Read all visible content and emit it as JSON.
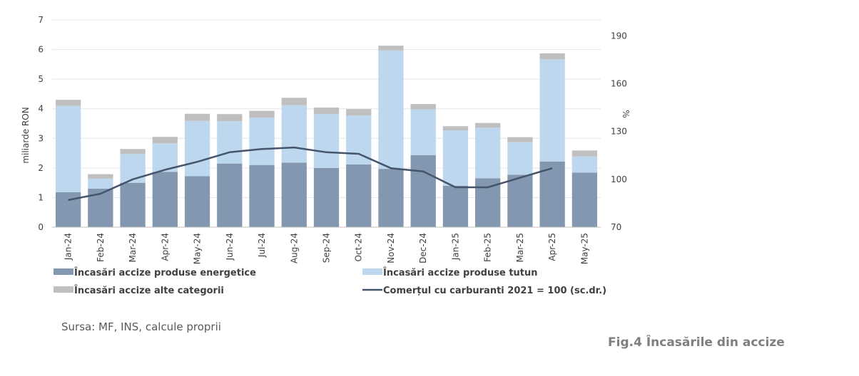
{
  "chart_data": {
    "type": "bar",
    "stacked": true,
    "categories": [
      "Jan-24",
      "Feb-24",
      "Mar-24",
      "Apr-24",
      "May-24",
      "Jun-24",
      "Jul-24",
      "Aug-24",
      "Sep-24",
      "Oct-24",
      "Nov-24",
      "Dec-24",
      "Jan-25",
      "Feb-25",
      "Mar-25",
      "Apr-25",
      "May-25"
    ],
    "series": [
      {
        "name": "Încasări accize produse energetice",
        "type": "bar",
        "axis": "left",
        "color": "#8497b0",
        "values": [
          1.18,
          1.3,
          1.5,
          1.87,
          1.72,
          2.15,
          2.1,
          2.18,
          2.0,
          2.12,
          1.97,
          2.43,
          1.4,
          1.65,
          1.77,
          2.22,
          1.84
        ]
      },
      {
        "name": "Încasări accize produse tutun",
        "type": "bar",
        "axis": "left",
        "color": "#bdd7ee",
        "values": [
          2.92,
          0.34,
          0.97,
          0.96,
          1.87,
          1.43,
          1.6,
          1.94,
          1.82,
          1.65,
          4.0,
          1.55,
          1.87,
          1.71,
          1.1,
          3.45,
          0.55
        ]
      },
      {
        "name": "Încasări accize alte categorii",
        "type": "bar",
        "axis": "left",
        "color": "#bfbfbf",
        "values": [
          0.2,
          0.15,
          0.17,
          0.22,
          0.24,
          0.24,
          0.23,
          0.25,
          0.22,
          0.22,
          0.16,
          0.18,
          0.14,
          0.16,
          0.17,
          0.2,
          0.2
        ]
      },
      {
        "name": "Comerțul cu carburanti 2021 = 100 (sc.dr.)",
        "type": "line",
        "axis": "right",
        "color": "#44546a",
        "values": [
          87,
          91,
          100,
          106,
          111,
          117,
          119,
          120,
          117,
          116,
          107,
          105,
          95,
          95,
          101,
          107,
          null
        ]
      }
    ],
    "ylabel": "miliarde RON",
    "ylim": [
      0,
      7
    ],
    "yticks": [
      "0",
      "1",
      "2",
      "3",
      "4",
      "5",
      "6",
      "7"
    ],
    "y2label": "%",
    "y2lim": [
      70,
      200
    ],
    "y2ticks": [
      "70",
      "100",
      "130",
      "160",
      "190"
    ],
    "grid": true,
    "legend_position": "bottom"
  },
  "source_text": "Sursa: MF, INS, calcule proprii",
  "figure_title": "Fig.4 Încasările din accize"
}
